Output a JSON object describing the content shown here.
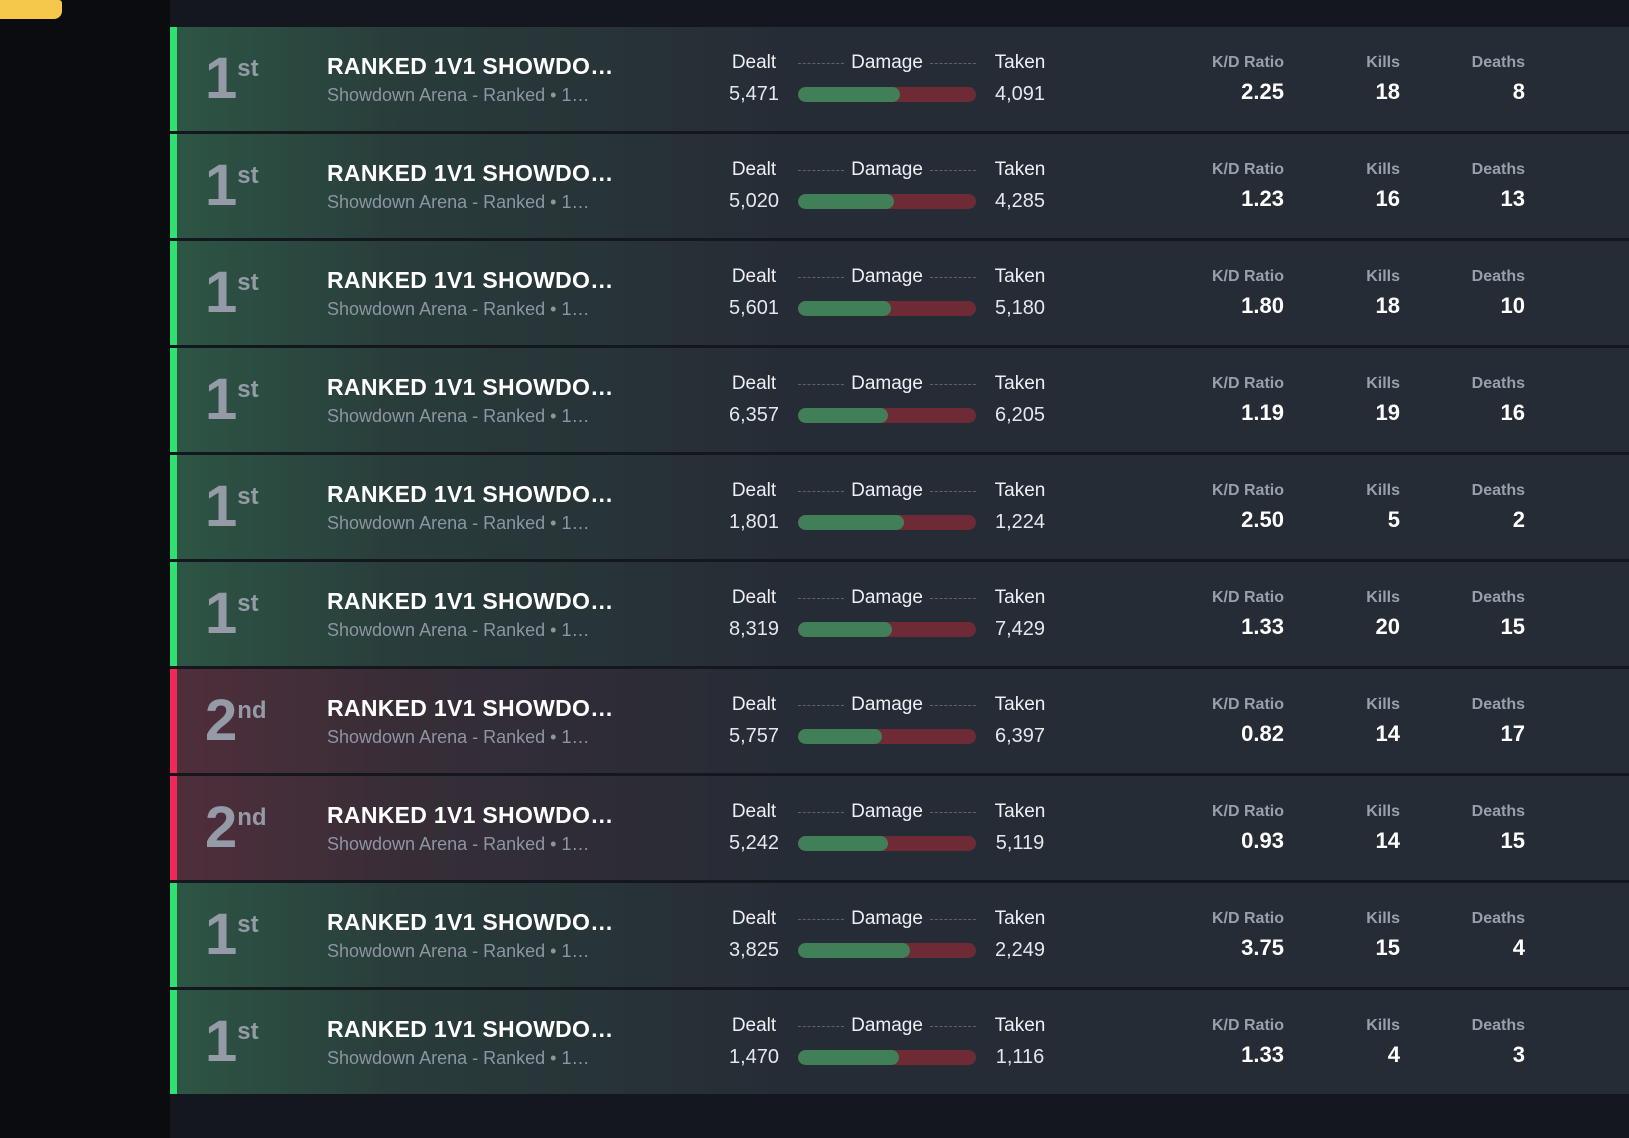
{
  "theme": {
    "badge_color": "#f5c84b",
    "accent_win": "#2fe173",
    "accent_loss": "#f1285a",
    "bar_dealt_color": "#417f58",
    "bar_taken_color": "#6e2b35",
    "row_background": "#262c35",
    "sidebar_background": "#0b0c0f"
  },
  "labels": {
    "dealt": "Dealt",
    "damage": "Damage",
    "taken": "Taken",
    "kd_ratio": "K/D Ratio",
    "kills": "Kills",
    "deaths": "Deaths"
  },
  "matches": [
    {
      "placement": "1",
      "placement_suffix": "st",
      "result": "win",
      "title": "RANKED 1V1 SHOWDO…",
      "subtitle": "Showdown Arena - Ranked • 1…",
      "damage_dealt": "5,471",
      "damage_taken": "4,091",
      "kd_ratio": "2.25",
      "kills": "18",
      "deaths": "8"
    },
    {
      "placement": "1",
      "placement_suffix": "st",
      "result": "win",
      "title": "RANKED 1V1 SHOWDO…",
      "subtitle": "Showdown Arena - Ranked • 1…",
      "damage_dealt": "5,020",
      "damage_taken": "4,285",
      "kd_ratio": "1.23",
      "kills": "16",
      "deaths": "13"
    },
    {
      "placement": "1",
      "placement_suffix": "st",
      "result": "win",
      "title": "RANKED 1V1 SHOWDO…",
      "subtitle": "Showdown Arena - Ranked • 1…",
      "damage_dealt": "5,601",
      "damage_taken": "5,180",
      "kd_ratio": "1.80",
      "kills": "18",
      "deaths": "10"
    },
    {
      "placement": "1",
      "placement_suffix": "st",
      "result": "win",
      "title": "RANKED 1V1 SHOWDO…",
      "subtitle": "Showdown Arena - Ranked • 1…",
      "damage_dealt": "6,357",
      "damage_taken": "6,205",
      "kd_ratio": "1.19",
      "kills": "19",
      "deaths": "16"
    },
    {
      "placement": "1",
      "placement_suffix": "st",
      "result": "win",
      "title": "RANKED 1V1 SHOWDO…",
      "subtitle": "Showdown Arena - Ranked • 1…",
      "damage_dealt": "1,801",
      "damage_taken": "1,224",
      "kd_ratio": "2.50",
      "kills": "5",
      "deaths": "2"
    },
    {
      "placement": "1",
      "placement_suffix": "st",
      "result": "win",
      "title": "RANKED 1V1 SHOWDO…",
      "subtitle": "Showdown Arena - Ranked • 1…",
      "damage_dealt": "8,319",
      "damage_taken": "7,429",
      "kd_ratio": "1.33",
      "kills": "20",
      "deaths": "15"
    },
    {
      "placement": "2",
      "placement_suffix": "nd",
      "result": "loss",
      "title": "RANKED 1V1 SHOWDO…",
      "subtitle": "Showdown Arena - Ranked • 1…",
      "damage_dealt": "5,757",
      "damage_taken": "6,397",
      "kd_ratio": "0.82",
      "kills": "14",
      "deaths": "17"
    },
    {
      "placement": "2",
      "placement_suffix": "nd",
      "result": "loss",
      "title": "RANKED 1V1 SHOWDO…",
      "subtitle": "Showdown Arena - Ranked • 1…",
      "damage_dealt": "5,242",
      "damage_taken": "5,119",
      "kd_ratio": "0.93",
      "kills": "14",
      "deaths": "15"
    },
    {
      "placement": "1",
      "placement_suffix": "st",
      "result": "win",
      "title": "RANKED 1V1 SHOWDO…",
      "subtitle": "Showdown Arena - Ranked • 1…",
      "damage_dealt": "3,825",
      "damage_taken": "2,249",
      "kd_ratio": "3.75",
      "kills": "15",
      "deaths": "4"
    },
    {
      "placement": "1",
      "placement_suffix": "st",
      "result": "win",
      "title": "RANKED 1V1 SHOWDO…",
      "subtitle": "Showdown Arena - Ranked • 1…",
      "damage_dealt": "1,470",
      "damage_taken": "1,116",
      "kd_ratio": "1.33",
      "kills": "4",
      "deaths": "3"
    }
  ]
}
